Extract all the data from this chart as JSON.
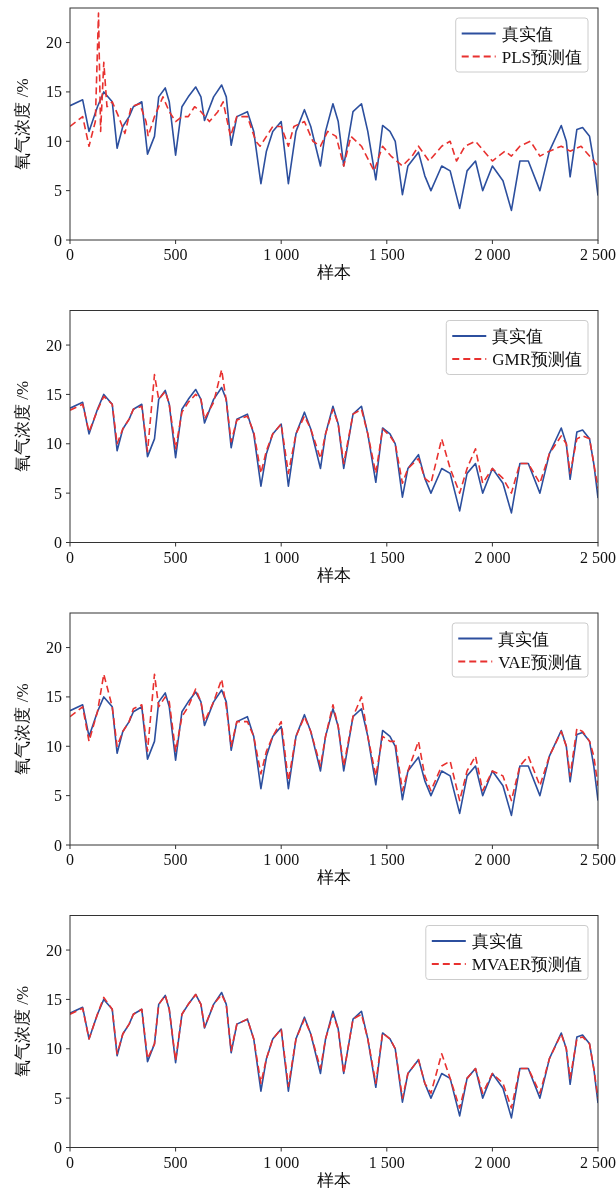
{
  "chart_data": [
    {
      "type": "line",
      "xlabel": "样本",
      "ylabel": "氧气浓度 /%",
      "xlim": [
        0,
        2500
      ],
      "ylim": [
        0,
        23.5
      ],
      "xticks": [
        {
          "value": 0,
          "label": "0"
        },
        {
          "value": 500,
          "label": "500"
        },
        {
          "value": 1000,
          "label": "1 000"
        },
        {
          "value": 1500,
          "label": "1 500"
        },
        {
          "value": 2000,
          "label": "2 000"
        },
        {
          "value": 2500,
          "label": "2 500"
        }
      ],
      "yticks": [
        {
          "value": 0,
          "label": "0"
        },
        {
          "value": 5,
          "label": "5"
        },
        {
          "value": 10,
          "label": "10"
        },
        {
          "value": 15,
          "label": "15"
        },
        {
          "value": 20,
          "label": "20"
        }
      ],
      "legend": "top right",
      "x": [
        0,
        60,
        90,
        130,
        160,
        200,
        223,
        250,
        280,
        300,
        340,
        367,
        400,
        420,
        451,
        470,
        500,
        530,
        560,
        595,
        620,
        637,
        680,
        718,
        740,
        763,
        790,
        840,
        870,
        904,
        930,
        960,
        1000,
        1034,
        1070,
        1110,
        1140,
        1186,
        1210,
        1245,
        1270,
        1296,
        1340,
        1380,
        1410,
        1448,
        1480,
        1515,
        1540,
        1574,
        1600,
        1650,
        1680,
        1709,
        1760,
        1800,
        1845,
        1880,
        1920,
        1954,
        2000,
        2050,
        2090,
        2130,
        2170,
        2225,
        2270,
        2326,
        2350,
        2368,
        2400,
        2427,
        2460,
        2480,
        2500
      ],
      "series": [
        {
          "name": "真实值",
          "color": "#2c4f9e",
          "line_style": "solid",
          "values": [
            13.6,
            14.2,
            11,
            13.5,
            15,
            14,
            9.3,
            11.5,
            12.5,
            13.5,
            14,
            8.7,
            10.5,
            14.5,
            15.4,
            14,
            8.6,
            13.5,
            14.5,
            15.5,
            14.5,
            12.1,
            14.5,
            15.7,
            14.5,
            9.6,
            12.5,
            13,
            11,
            5.7,
            9,
            11,
            12,
            5.7,
            11,
            13.2,
            11.5,
            7.5,
            11,
            13.8,
            12,
            7.5,
            13,
            13.8,
            11,
            6.1,
            11.6,
            11,
            10,
            4.6,
            7.5,
            8.9,
            6.5,
            5,
            7.5,
            7,
            3.2,
            7,
            8,
            5,
            7.5,
            6,
            3.0,
            8,
            8,
            5,
            9,
            11.6,
            10,
            6.4,
            11.2,
            11.4,
            10.5,
            8,
            4.5
          ]
        },
        {
          "name": "PLS预测值",
          "color": "#e8312f",
          "line_style": "dashed",
          "x": [
            0,
            60,
            90,
            120,
            135,
            145,
            160,
            175,
            200,
            230,
            260,
            290,
            330,
            360,
            370,
            400,
            440,
            470,
            500,
            530,
            560,
            590,
            620,
            660,
            700,
            725,
            760,
            790,
            840,
            880,
            900,
            930,
            960,
            1000,
            1034,
            1060,
            1110,
            1150,
            1186,
            1220,
            1260,
            1296,
            1330,
            1380,
            1440,
            1480,
            1520,
            1574,
            1620,
            1650,
            1700,
            1760,
            1800,
            1830,
            1870,
            1920,
            1960,
            2000,
            2060,
            2090,
            2130,
            2180,
            2225,
            2270,
            2326,
            2368,
            2420,
            2460,
            2500
          ],
          "values": [
            11.5,
            12.5,
            9.5,
            12,
            23,
            11,
            18,
            13.5,
            14,
            12.5,
            10.8,
            13.5,
            13.8,
            12,
            10.5,
            12.5,
            14.5,
            13,
            12,
            12.5,
            12.5,
            13.5,
            13,
            12,
            13,
            14,
            10.5,
            12.5,
            12.5,
            10,
            9.5,
            10.5,
            11.5,
            11.5,
            9.5,
            11.5,
            12,
            10,
            9.5,
            11,
            10.5,
            7.5,
            10.5,
            9.5,
            7,
            9.5,
            8.5,
            7.5,
            8.5,
            9.5,
            8,
            9.5,
            10,
            8,
            9.5,
            10,
            9,
            8,
            9,
            8.5,
            9.5,
            10,
            8.5,
            9,
            9.5,
            9,
            9.5,
            8.5,
            7.5
          ]
        }
      ]
    },
    {
      "type": "line",
      "xlabel": "样本",
      "ylabel": "氧气浓度 /%",
      "xlim": [
        0,
        2500
      ],
      "ylim": [
        0,
        23.5
      ],
      "xticks": [
        {
          "value": 0,
          "label": "0"
        },
        {
          "value": 500,
          "label": "500"
        },
        {
          "value": 1000,
          "label": "1 000"
        },
        {
          "value": 1500,
          "label": "1 500"
        },
        {
          "value": 2000,
          "label": "2 000"
        },
        {
          "value": 2500,
          "label": "2 500"
        }
      ],
      "yticks": [
        {
          "value": 0,
          "label": "0"
        },
        {
          "value": 5,
          "label": "5"
        },
        {
          "value": 10,
          "label": "10"
        },
        {
          "value": 15,
          "label": "15"
        },
        {
          "value": 20,
          "label": "20"
        }
      ],
      "legend": "top right",
      "x": [
        0,
        60,
        90,
        130,
        160,
        200,
        223,
        250,
        280,
        300,
        340,
        367,
        400,
        420,
        451,
        470,
        500,
        530,
        560,
        595,
        620,
        637,
        680,
        718,
        740,
        763,
        790,
        840,
        870,
        904,
        930,
        960,
        1000,
        1034,
        1070,
        1110,
        1140,
        1186,
        1210,
        1245,
        1270,
        1296,
        1340,
        1380,
        1410,
        1448,
        1480,
        1515,
        1540,
        1574,
        1600,
        1650,
        1680,
        1709,
        1760,
        1800,
        1845,
        1880,
        1920,
        1954,
        2000,
        2050,
        2090,
        2130,
        2170,
        2225,
        2270,
        2326,
        2350,
        2368,
        2400,
        2427,
        2460,
        2480,
        2500
      ],
      "series": [
        {
          "name": "真实值",
          "color": "#2c4f9e",
          "line_style": "solid",
          "values": [
            13.6,
            14.2,
            11,
            13.5,
            15,
            14,
            9.3,
            11.5,
            12.5,
            13.5,
            14,
            8.7,
            10.5,
            14.5,
            15.4,
            14,
            8.6,
            13.5,
            14.5,
            15.5,
            14.5,
            12.1,
            14.5,
            15.7,
            14.5,
            9.6,
            12.5,
            13,
            11,
            5.7,
            9,
            11,
            12,
            5.7,
            11,
            13.2,
            11.5,
            7.5,
            11,
            13.8,
            12,
            7.5,
            13,
            13.8,
            11,
            6.1,
            11.6,
            11,
            10,
            4.6,
            7.5,
            8.9,
            6.5,
            5,
            7.5,
            7,
            3.2,
            7,
            8,
            5,
            7.5,
            6,
            3.0,
            8,
            8,
            5,
            9,
            11.6,
            10,
            6.4,
            11.2,
            11.4,
            10.5,
            8,
            4.5
          ]
        },
        {
          "name": "GMR预测值",
          "color": "#e8312f",
          "line_style": "dashed",
          "values": [
            13.4,
            14,
            11.2,
            13.4,
            14.8,
            14,
            10,
            11.5,
            12.5,
            13.5,
            13.8,
            9.2,
            17,
            14.5,
            15.3,
            14,
            9.5,
            13.2,
            14.2,
            15,
            14.5,
            12.5,
            14.2,
            17.5,
            14.3,
            10.2,
            12.4,
            12.8,
            11.2,
            7,
            9.3,
            11,
            12,
            7,
            11,
            12.8,
            11.5,
            8.5,
            11,
            13.5,
            12,
            8,
            13,
            13.5,
            11,
            7,
            11.5,
            10.8,
            10,
            6,
            7.5,
            8.5,
            6.5,
            6,
            10.5,
            7.5,
            5,
            7.5,
            9.5,
            6,
            7.5,
            6.5,
            5,
            8,
            8,
            6,
            9,
            10.8,
            10,
            7,
            10.5,
            10.8,
            10.5,
            8,
            5.5
          ]
        }
      ]
    },
    {
      "type": "line",
      "xlabel": "样本",
      "ylabel": "氧气浓度 /%",
      "xlim": [
        0,
        2500
      ],
      "ylim": [
        0,
        23.5
      ],
      "xticks": [
        {
          "value": 0,
          "label": "0"
        },
        {
          "value": 500,
          "label": "500"
        },
        {
          "value": 1000,
          "label": "1 000"
        },
        {
          "value": 1500,
          "label": "1 500"
        },
        {
          "value": 2000,
          "label": "2 000"
        },
        {
          "value": 2500,
          "label": "2 500"
        }
      ],
      "yticks": [
        {
          "value": 0,
          "label": "0"
        },
        {
          "value": 5,
          "label": "5"
        },
        {
          "value": 10,
          "label": "10"
        },
        {
          "value": 15,
          "label": "15"
        },
        {
          "value": 20,
          "label": "20"
        }
      ],
      "legend": "top right",
      "x": [
        0,
        60,
        90,
        130,
        160,
        200,
        223,
        250,
        280,
        300,
        340,
        367,
        400,
        420,
        451,
        470,
        500,
        530,
        560,
        595,
        620,
        637,
        680,
        718,
        740,
        763,
        790,
        840,
        870,
        904,
        930,
        960,
        1000,
        1034,
        1070,
        1110,
        1140,
        1186,
        1210,
        1245,
        1270,
        1296,
        1340,
        1380,
        1410,
        1448,
        1480,
        1515,
        1540,
        1574,
        1600,
        1650,
        1680,
        1709,
        1760,
        1800,
        1845,
        1880,
        1920,
        1954,
        2000,
        2050,
        2090,
        2130,
        2170,
        2225,
        2270,
        2326,
        2350,
        2368,
        2400,
        2427,
        2460,
        2480,
        2500
      ],
      "series": [
        {
          "name": "真实值",
          "color": "#2c4f9e",
          "line_style": "solid",
          "values": [
            13.6,
            14.2,
            11,
            13.5,
            15,
            14,
            9.3,
            11.5,
            12.5,
            13.5,
            14,
            8.7,
            10.5,
            14.5,
            15.4,
            14,
            8.6,
            13.5,
            14.5,
            15.5,
            14.5,
            12.1,
            14.5,
            15.7,
            14.5,
            9.6,
            12.5,
            13,
            11,
            5.7,
            9,
            11,
            12,
            5.7,
            11,
            13.2,
            11.5,
            7.5,
            11,
            13.8,
            12,
            7.5,
            13,
            13.8,
            11,
            6.1,
            11.6,
            11,
            10,
            4.6,
            7.5,
            8.9,
            6.5,
            5,
            7.5,
            7,
            3.2,
            7,
            8,
            5,
            7.5,
            6,
            3.0,
            8,
            8,
            5,
            9,
            11.6,
            10,
            6.4,
            11.2,
            11.4,
            10.5,
            8,
            4.5
          ]
        },
        {
          "name": "VAE预测值",
          "color": "#e8312f",
          "line_style": "dashed",
          "values": [
            13,
            14,
            10.5,
            13.5,
            17.3,
            14,
            10,
            11.5,
            12.5,
            13.8,
            14.2,
            9.5,
            17.3,
            14,
            15,
            14.5,
            9.5,
            13,
            14,
            15.8,
            14.5,
            12.5,
            14.5,
            16.8,
            14,
            10,
            12.5,
            12.5,
            11,
            7.2,
            9.5,
            11,
            12.5,
            6.5,
            11,
            13,
            11.5,
            8,
            11,
            14.2,
            12,
            8,
            13,
            15,
            11,
            7,
            11,
            10.5,
            10.5,
            5.5,
            7.5,
            10.5,
            7,
            5.5,
            8,
            8.5,
            4.5,
            7.5,
            9,
            5.5,
            7.5,
            7,
            4.5,
            8,
            9,
            6,
            9,
            11.5,
            10,
            7,
            11.8,
            11.5,
            10.5,
            9,
            6
          ]
        }
      ]
    },
    {
      "type": "line",
      "xlabel": "样本",
      "ylabel": "氧气浓度 /%",
      "xlim": [
        0,
        2500
      ],
      "ylim": [
        0,
        23.5
      ],
      "xticks": [
        {
          "value": 0,
          "label": "0"
        },
        {
          "value": 500,
          "label": "500"
        },
        {
          "value": 1000,
          "label": "1 000"
        },
        {
          "value": 1500,
          "label": "1 500"
        },
        {
          "value": 2000,
          "label": "2 000"
        },
        {
          "value": 2500,
          "label": "2 500"
        }
      ],
      "yticks": [
        {
          "value": 0,
          "label": "0"
        },
        {
          "value": 5,
          "label": "5"
        },
        {
          "value": 10,
          "label": "10"
        },
        {
          "value": 15,
          "label": "15"
        },
        {
          "value": 20,
          "label": "20"
        }
      ],
      "legend": "top right",
      "x": [
        0,
        60,
        90,
        130,
        160,
        200,
        223,
        250,
        280,
        300,
        340,
        367,
        400,
        420,
        451,
        470,
        500,
        530,
        560,
        595,
        620,
        637,
        680,
        718,
        740,
        763,
        790,
        840,
        870,
        904,
        930,
        960,
        1000,
        1034,
        1070,
        1110,
        1140,
        1186,
        1210,
        1245,
        1270,
        1296,
        1340,
        1380,
        1410,
        1448,
        1480,
        1515,
        1540,
        1574,
        1600,
        1650,
        1680,
        1709,
        1760,
        1800,
        1845,
        1880,
        1920,
        1954,
        2000,
        2050,
        2090,
        2130,
        2170,
        2225,
        2270,
        2326,
        2350,
        2368,
        2400,
        2427,
        2460,
        2480,
        2500
      ],
      "series": [
        {
          "name": "真实值",
          "color": "#2c4f9e",
          "line_style": "solid",
          "values": [
            13.6,
            14.2,
            11,
            13.5,
            15,
            14,
            9.3,
            11.5,
            12.5,
            13.5,
            14,
            8.7,
            10.5,
            14.5,
            15.4,
            14,
            8.6,
            13.5,
            14.5,
            15.5,
            14.5,
            12.1,
            14.5,
            15.7,
            14.5,
            9.6,
            12.5,
            13,
            11,
            5.7,
            9,
            11,
            12,
            5.7,
            11,
            13.2,
            11.5,
            7.5,
            11,
            13.8,
            12,
            7.5,
            13,
            13.8,
            11,
            6.1,
            11.6,
            11,
            10,
            4.6,
            7.5,
            8.9,
            6.5,
            5,
            7.5,
            7,
            3.2,
            7,
            8,
            5,
            7.5,
            6,
            3.0,
            8,
            8,
            5,
            9,
            11.6,
            10,
            6.4,
            11.2,
            11.4,
            10.5,
            8,
            4.5
          ]
        },
        {
          "name": "MVAER预测值",
          "color": "#e8312f",
          "line_style": "dashed",
          "values": [
            13.5,
            14.1,
            11,
            13.5,
            15.2,
            14,
            9.5,
            11.5,
            12.5,
            13.5,
            14,
            9,
            10.5,
            14.5,
            15.4,
            14,
            8.8,
            13.5,
            14.5,
            15.5,
            14.5,
            12.2,
            14.5,
            15.5,
            14.5,
            9.8,
            12.5,
            13,
            11,
            6.5,
            9,
            11,
            12,
            6.2,
            11,
            13,
            11.5,
            8,
            11,
            13.5,
            12,
            7.5,
            13,
            13.5,
            11,
            6.5,
            11.6,
            11,
            10,
            5,
            7.5,
            8.9,
            6.5,
            5.5,
            9.5,
            7,
            4,
            7,
            8,
            5.5,
            7.5,
            6.5,
            4,
            8,
            8,
            5.5,
            9,
            11.5,
            10,
            7,
            11,
            11.2,
            10.5,
            8,
            5
          ]
        }
      ]
    }
  ]
}
